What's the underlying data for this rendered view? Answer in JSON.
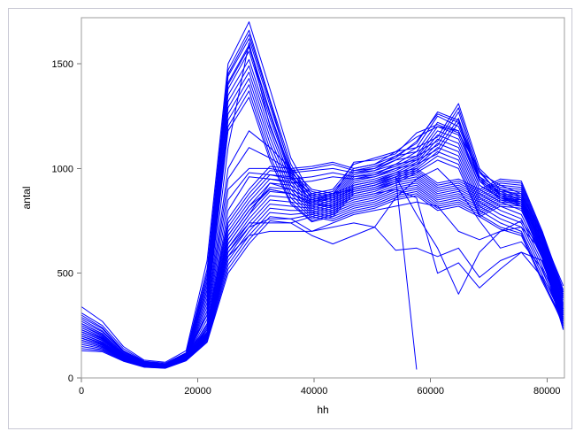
{
  "chart_data": {
    "type": "line",
    "title": "",
    "xlabel": "hh",
    "ylabel": "antal",
    "xlim": [
      0,
      83000
    ],
    "ylim": [
      0,
      1720
    ],
    "xticks": [
      0,
      20000,
      40000,
      60000,
      80000
    ],
    "yticks": [
      0,
      500,
      1000,
      1500
    ],
    "grid": false,
    "legend": "none",
    "line_color": "#0000ff",
    "x": [
      0,
      3600,
      7200,
      10800,
      14400,
      18000,
      21600,
      25200,
      28800,
      32400,
      36000,
      39600,
      43200,
      46800,
      50400,
      54000,
      57600,
      61200,
      64800,
      68400,
      72000,
      75600,
      79200,
      82800
    ],
    "series": [
      {
        "values": [
          340,
          270,
          150,
          85,
          75,
          130,
          560,
          1500,
          1700,
          1380,
          1050,
          870,
          890,
          1000,
          1020,
          1060,
          1120,
          1270,
          1230,
          980,
          920,
          880,
          680,
          440
        ]
      },
      {
        "values": [
          310,
          250,
          140,
          80,
          70,
          120,
          520,
          1470,
          1660,
          1330,
          1020,
          850,
          870,
          980,
          1000,
          1040,
          1100,
          1250,
          1200,
          960,
          900,
          860,
          650,
          410
        ]
      },
      {
        "values": [
          290,
          235,
          130,
          75,
          65,
          115,
          500,
          1440,
          1620,
          1300,
          1000,
          830,
          860,
          970,
          990,
          1020,
          1080,
          1220,
          1180,
          940,
          880,
          840,
          630,
          390
        ]
      },
      {
        "values": [
          270,
          220,
          125,
          72,
          62,
          110,
          480,
          1410,
          1590,
          1270,
          980,
          820,
          850,
          960,
          980,
          1010,
          1060,
          1200,
          1160,
          920,
          860,
          820,
          610,
          370
        ]
      },
      {
        "values": [
          250,
          205,
          120,
          68,
          60,
          105,
          460,
          1380,
          1560,
          1240,
          960,
          810,
          840,
          950,
          970,
          1000,
          1050,
          1180,
          1140,
          900,
          840,
          800,
          590,
          350
        ]
      },
      {
        "values": [
          240,
          195,
          112,
          65,
          58,
          100,
          440,
          1350,
          1520,
          1210,
          940,
          800,
          830,
          940,
          960,
          990,
          1040,
          1160,
          1120,
          880,
          820,
          780,
          570,
          330
        ]
      },
      {
        "values": [
          230,
          185,
          108,
          62,
          56,
          98,
          420,
          1320,
          1490,
          1180,
          920,
          790,
          820,
          930,
          950,
          980,
          1030,
          1140,
          1100,
          860,
          800,
          760,
          550,
          310
        ]
      },
      {
        "values": [
          220,
          178,
          104,
          60,
          55,
          95,
          400,
          1290,
          1460,
          1150,
          900,
          780,
          810,
          920,
          940,
          970,
          1020,
          1120,
          1080,
          840,
          780,
          740,
          530,
          300
        ]
      },
      {
        "values": [
          210,
          170,
          100,
          58,
          53,
          92,
          380,
          1260,
          1430,
          1120,
          880,
          770,
          800,
          910,
          930,
          960,
          1010,
          1100,
          1060,
          820,
          760,
          720,
          510,
          290
        ]
      },
      {
        "values": [
          200,
          162,
          96,
          56,
          52,
          90,
          360,
          1230,
          1400,
          1090,
          860,
          760,
          790,
          900,
          920,
          950,
          1000,
          1080,
          1040,
          800,
          740,
          700,
          490,
          280
        ]
      },
      {
        "values": [
          190,
          155,
          92,
          55,
          50,
          88,
          340,
          1200,
          1370,
          1060,
          840,
          750,
          780,
          890,
          910,
          940,
          990,
          1060,
          1020,
          780,
          720,
          690,
          470,
          270
        ]
      },
      {
        "values": [
          180,
          150,
          90,
          54,
          49,
          86,
          320,
          1180,
          1340,
          1040,
          830,
          745,
          770,
          880,
          900,
          930,
          980,
          1040,
          1000,
          770,
          710,
          680,
          460,
          260
        ]
      },
      {
        "values": [
          300,
          240,
          130,
          78,
          66,
          118,
          300,
          1100,
          1600,
          1200,
          950,
          880,
          900,
          1020,
          1050,
          1080,
          1150,
          1200,
          1180,
          920,
          860,
          840,
          640,
          400
        ]
      },
      {
        "values": [
          280,
          225,
          128,
          74,
          64,
          112,
          460,
          1450,
          1640,
          1320,
          990,
          860,
          880,
          990,
          1010,
          1050,
          1130,
          1260,
          1220,
          950,
          890,
          850,
          620,
          380
        ]
      },
      {
        "values": [
          260,
          212,
          118,
          70,
          61,
          108,
          420,
          1400,
          1580,
          1260,
          970,
          840,
          870,
          1030,
          1040,
          1070,
          1170,
          1210,
          1170,
          990,
          870,
          830,
          600,
          360
        ]
      },
      {
        "values": [
          230,
          190,
          110,
          64,
          57,
          100,
          300,
          1000,
          1180,
          1100,
          1000,
          1010,
          1030,
          1000,
          1020,
          1080,
          1100,
          1150,
          1310,
          1000,
          900,
          870,
          700,
          420
        ]
      },
      {
        "values": [
          220,
          180,
          105,
          62,
          55,
          96,
          280,
          950,
          1100,
          1050,
          990,
          1000,
          1020,
          990,
          1000,
          1060,
          1080,
          1130,
          1290,
          980,
          880,
          850,
          690,
          410
        ]
      },
      {
        "values": [
          210,
          172,
          100,
          60,
          54,
          94,
          260,
          900,
          1000,
          1000,
          980,
          990,
          1000,
          980,
          990,
          1040,
          1060,
          1110,
          1270,
          960,
          870,
          840,
          680,
          400
        ]
      },
      {
        "values": [
          200,
          165,
          98,
          58,
          52,
          92,
          240,
          850,
          980,
          970,
          950,
          960,
          980,
          960,
          970,
          1020,
          1040,
          1090,
          1240,
          950,
          860,
          830,
          670,
          390
        ]
      },
      {
        "values": [
          190,
          158,
          95,
          57,
          51,
          90,
          230,
          800,
          960,
          950,
          930,
          940,
          960,
          950,
          960,
          1000,
          1020,
          1070,
          1220,
          940,
          850,
          820,
          660,
          380
        ]
      },
      {
        "values": [
          260,
          210,
          120,
          70,
          62,
          110,
          250,
          760,
          900,
          1010,
          1000,
          900,
          880,
          920,
          940,
          980,
          1000,
          930,
          950,
          900,
          950,
          940,
          700,
          350
        ]
      },
      {
        "values": [
          250,
          200,
          115,
          68,
          60,
          106,
          240,
          740,
          880,
          990,
          980,
          890,
          870,
          910,
          930,
          970,
          990,
          920,
          940,
          890,
          940,
          930,
          690,
          340
        ]
      },
      {
        "values": [
          240,
          195,
          112,
          66,
          59,
          104,
          230,
          720,
          860,
          970,
          960,
          880,
          860,
          900,
          920,
          960,
          980,
          910,
          930,
          880,
          930,
          920,
          680,
          330
        ]
      },
      {
        "values": [
          230,
          188,
          108,
          64,
          58,
          102,
          220,
          700,
          840,
          950,
          940,
          870,
          850,
          890,
          910,
          950,
          970,
          900,
          920,
          870,
          920,
          910,
          670,
          320
        ]
      },
      {
        "values": [
          220,
          180,
          104,
          62,
          56,
          100,
          215,
          680,
          820,
          930,
          920,
          860,
          840,
          880,
          900,
          940,
          960,
          890,
          910,
          860,
          910,
          900,
          660,
          310
        ]
      },
      {
        "values": [
          210,
          172,
          100,
          60,
          55,
          98,
          210,
          660,
          800,
          910,
          900,
          850,
          830,
          870,
          890,
          930,
          950,
          880,
          900,
          850,
          900,
          890,
          650,
          300
        ]
      },
      {
        "values": [
          200,
          165,
          98,
          58,
          54,
          96,
          205,
          640,
          780,
          890,
          880,
          840,
          820,
          860,
          880,
          920,
          940,
          870,
          890,
          840,
          890,
          880,
          640,
          290
        ]
      },
      {
        "values": [
          190,
          158,
          95,
          57,
          53,
          94,
          200,
          620,
          760,
          870,
          860,
          830,
          810,
          850,
          870,
          910,
          930,
          860,
          880,
          830,
          880,
          870,
          630,
          280
        ]
      },
      {
        "values": [
          180,
          150,
          92,
          56,
          52,
          92,
          195,
          600,
          740,
          850,
          840,
          820,
          800,
          840,
          860,
          900,
          920,
          850,
          870,
          820,
          870,
          860,
          620,
          270
        ]
      },
      {
        "values": [
          170,
          145,
          90,
          55,
          50,
          90,
          190,
          580,
          720,
          830,
          820,
          810,
          790,
          830,
          850,
          890,
          910,
          840,
          860,
          810,
          860,
          850,
          610,
          260
        ]
      },
      {
        "values": [
          160,
          140,
          88,
          54,
          49,
          88,
          185,
          560,
          700,
          810,
          800,
          800,
          780,
          820,
          840,
          880,
          900,
          830,
          850,
          800,
          850,
          840,
          600,
          250
        ]
      },
      {
        "values": [
          150,
          135,
          85,
          53,
          48,
          86,
          180,
          540,
          680,
          790,
          780,
          790,
          770,
          810,
          830,
          870,
          890,
          820,
          840,
          790,
          840,
          830,
          590,
          240
        ]
      },
      {
        "values": [
          140,
          130,
          82,
          52,
          47,
          84,
          175,
          520,
          660,
          770,
          760,
          780,
          760,
          800,
          820,
          860,
          880,
          810,
          830,
          780,
          830,
          820,
          580,
          235
        ]
      },
      {
        "values": [
          130,
          125,
          80,
          51,
          46,
          82,
          170,
          500,
          640,
          750,
          740,
          770,
          750,
          790,
          810,
          850,
          870,
          800,
          820,
          770,
          820,
          810,
          570,
          230
        ]
      },
      {
        "values": [
          200,
          165,
          98,
          58,
          54,
          96,
          205,
          640,
          780,
          930,
          900,
          850,
          880,
          900,
          920,
          960,
          780,
          620,
          400,
          600,
          700,
          750,
          600,
          300
        ]
      },
      {
        "values": [
          210,
          170,
          100,
          60,
          55,
          98,
          210,
          660,
          800,
          900,
          880,
          830,
          820,
          860,
          880,
          900,
          860,
          500,
          550,
          430,
          520,
          600,
          560,
          280
        ]
      },
      {
        "values": [
          190,
          158,
          95,
          57,
          53,
          94,
          200,
          620,
          740,
          740,
          740,
          680,
          640,
          680,
          720,
          860,
          950,
          1000,
          900,
          750,
          620,
          650,
          520,
          260
        ]
      },
      {
        "values": [
          180,
          150,
          92,
          56,
          52,
          92,
          195,
          600,
          720,
          760,
          760,
          700,
          720,
          740,
          720,
          610,
          620,
          580,
          620,
          480,
          560,
          600,
          480,
          250
        ]
      },
      {
        "values": [
          170,
          145,
          90,
          55,
          50,
          90,
          190,
          580,
          680,
          700,
          700,
          700,
          740,
          780,
          800,
          820,
          840,
          820,
          700,
          660,
          700,
          720,
          600,
          320
        ]
      }
    ],
    "dropout_series": {
      "x": [
        0,
        3600,
        7200,
        10800,
        14400,
        18000,
        21600,
        25200,
        28800,
        32400,
        36000,
        39600,
        43200,
        46800,
        50400,
        54000,
        57600
      ],
      "values": [
        220,
        180,
        104,
        62,
        56,
        100,
        215,
        680,
        820,
        900,
        880,
        840,
        860,
        900,
        920,
        960,
        40
      ]
    }
  }
}
